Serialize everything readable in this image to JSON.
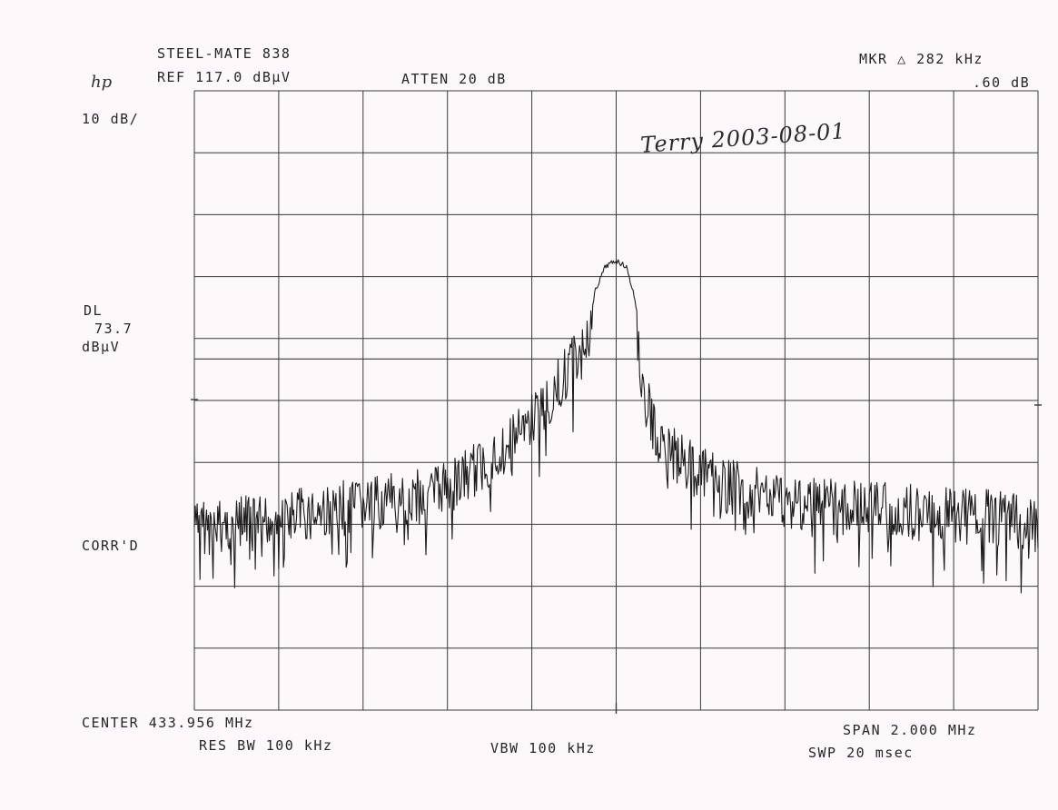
{
  "header": {
    "title": "STEEL-MATE 838",
    "ref_level": "REF 117.0 dBµV",
    "atten": "ATTEN 20 dB",
    "marker_line1": "MKR △ 282 kHz",
    "marker_line2": ".60 dB",
    "scale": "10 dB/",
    "logo": "hp"
  },
  "left_labels": {
    "dl_label": "DL",
    "dl_value": "73.7",
    "dl_unit": "dBµV",
    "corr": "CORR'D"
  },
  "footer": {
    "center": "CENTER 433.956 MHz",
    "res_bw": "RES BW 100 kHz",
    "vbw": "VBW 100 kHz",
    "span": "SPAN 2.000 MHz",
    "sweep": "SWP 20 msec"
  },
  "annotation": {
    "handwritten": "Terry 2003-08-01"
  },
  "colors": {
    "background": "#fdf9fb",
    "grid": "#3a3a3a",
    "trace": "#1c1c1c"
  },
  "chart_data": {
    "type": "line",
    "x": [
      433.0,
      433.1,
      433.2,
      433.3,
      433.4,
      433.5,
      433.6,
      433.7,
      433.8,
      433.85,
      433.9,
      433.93,
      433.956,
      433.98,
      434.0,
      434.02,
      434.05,
      434.1,
      434.2,
      434.3,
      434.4,
      434.5,
      434.6,
      434.7,
      434.8,
      434.9,
      434.956
    ],
    "y": [
      51,
      52,
      53,
      54,
      55,
      56,
      59,
      64,
      72,
      77,
      84,
      89,
      90,
      89,
      84,
      74,
      66,
      62,
      58,
      56,
      55,
      54,
      54,
      53,
      53,
      52,
      52
    ],
    "xlim": [
      432.956,
      434.956
    ],
    "ylim": [
      17.0,
      117.0
    ],
    "grid": true,
    "display_line_dbuv": 73.7
  }
}
